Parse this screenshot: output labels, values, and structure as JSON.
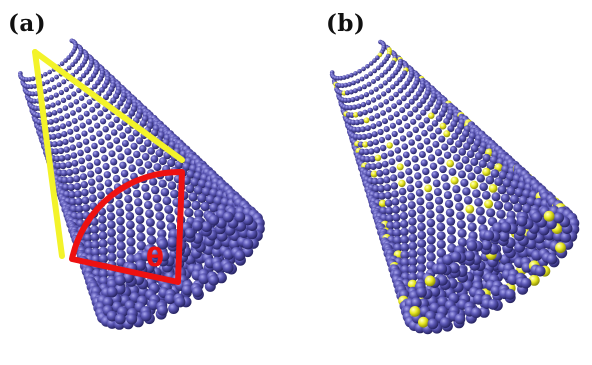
{
  "panels": {
    "a": {
      "label": "(a)",
      "annotation": "θ"
    },
    "b": {
      "label": "(b)"
    }
  },
  "colors": {
    "atom": "#5a56b4",
    "atom_highlight": "#a8a6ee",
    "atom_shadow": "#24215e",
    "dopant": "#e9e923",
    "guide_line": "#f3f32a",
    "angle_marker": "#ee1111",
    "background": "#ffffff"
  },
  "icons": {
    "structure": "atomic-nanotube-cylinder"
  }
}
